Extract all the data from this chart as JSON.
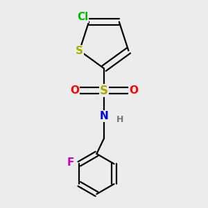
{
  "background_color": "#ececec",
  "atom_colors": {
    "Cl": "#00bb00",
    "S_thiophene": "#aaaa00",
    "S_sulfonyl": "#aaaa00",
    "O": "#ff0000",
    "N": "#0000ee",
    "H": "#777777",
    "F": "#cc00bb",
    "C": "#000000"
  },
  "lw": 1.6,
  "fs": 11,
  "fs_small": 9,
  "xlim": [
    0,
    10
  ],
  "ylim": [
    0,
    13
  ],
  "figsize": [
    3.0,
    3.0
  ],
  "dpi": 100
}
